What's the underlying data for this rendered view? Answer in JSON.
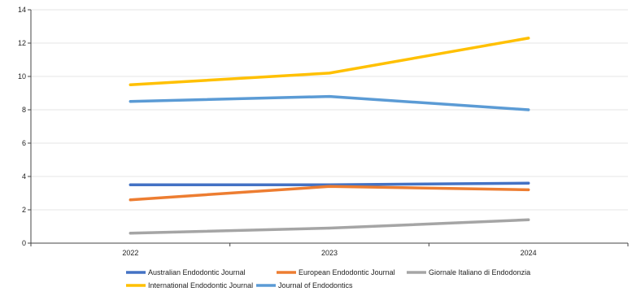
{
  "chart_data": {
    "type": "line",
    "title": "",
    "xlabel": "",
    "ylabel": "",
    "x": [
      "2022",
      "2023",
      "2024"
    ],
    "ylim": [
      0,
      14
    ],
    "yticks": [
      "0",
      "2",
      "4",
      "6",
      "8",
      "10",
      "12",
      "14"
    ],
    "grid": true,
    "legend_position": "bottom",
    "series": [
      {
        "name": "Australian Endodontic Journal",
        "color": "#4472C4",
        "values": [
          3.5,
          3.5,
          3.6
        ]
      },
      {
        "name": "European Endodontic Journal",
        "color": "#ED7D31",
        "values": [
          2.6,
          3.4,
          3.2
        ]
      },
      {
        "name": "Giornale Italiano di Endodonzia",
        "color": "#A5A5A5",
        "values": [
          0.6,
          0.9,
          1.4
        ]
      },
      {
        "name": "International Endodontic Journal",
        "color": "#FFC000",
        "values": [
          9.5,
          10.2,
          12.3
        ]
      },
      {
        "name": "Journal of Endodontics",
        "color": "#5B9BD5",
        "values": [
          8.5,
          8.8,
          8.0
        ]
      }
    ]
  }
}
